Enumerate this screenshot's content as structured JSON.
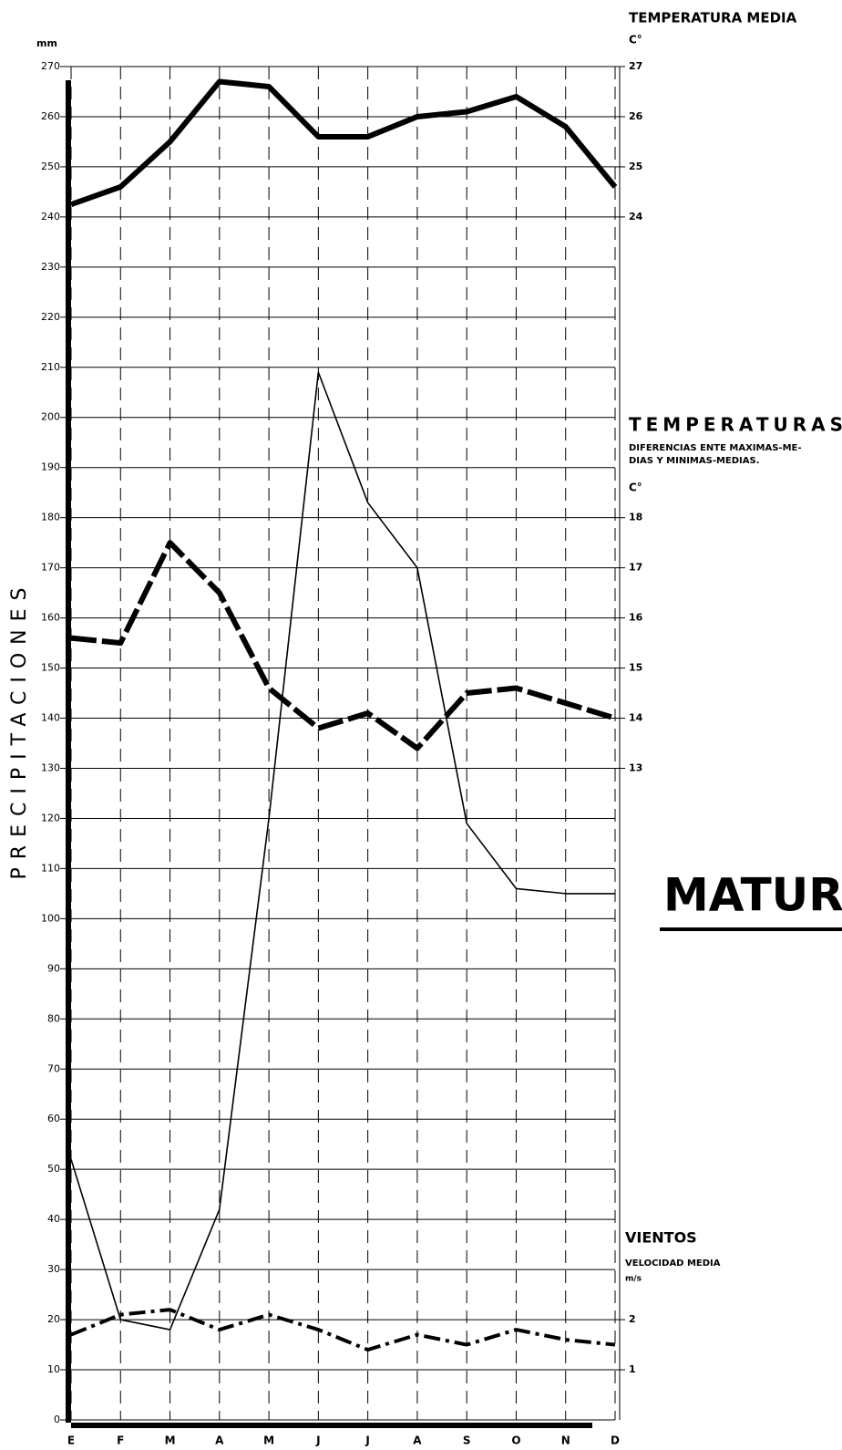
{
  "chart_data": {
    "type": "line",
    "title": "MATUR",
    "ylabel": "PRECIPITACIONES",
    "yunit": "mm",
    "y2_title": "TEMPERATURA MEDIA",
    "y2_unit": "C°",
    "y3_title": "TEMPERATURAS",
    "y3_subtitle": [
      "DIFERENCIAS ENTE MAXIMAS-ME-",
      "DIAS Y MINIMAS-MEDIAS."
    ],
    "y3_unit": "C°",
    "y4_title": "VIENTOS",
    "y4_subtitle": "VELOCIDAD MEDIA",
    "y4_unit": "m/s",
    "categories": [
      "E",
      "F",
      "M",
      "A",
      "M",
      "J",
      "J",
      "A",
      "S",
      "O",
      "N",
      "D"
    ],
    "series": [
      {
        "color": "#000000",
        "values": [
          52,
          20,
          18,
          42,
          120,
          209,
          183,
          170,
          119,
          106,
          105,
          105
        ]
      },
      {
        "color": "#000000",
        "axis": "y2",
        "values": [
          24.25,
          24.6,
          25.5,
          26.7,
          26.6,
          25.6,
          25.6,
          26.0,
          26.1,
          26.4,
          25.8,
          24.6
        ]
      },
      {
        "color": "#000000",
        "axis": "y3",
        "values": [
          15.6,
          15.5,
          17.5,
          16.5,
          14.6,
          13.8,
          14.1,
          13.4,
          14.5,
          14.6,
          14.3,
          14.0
        ]
      },
      {
        "color": "#000000",
        "axis": "y4",
        "values": [
          1.7,
          2.1,
          2.2,
          1.8,
          2.1,
          1.8,
          1.4,
          1.7,
          1.5,
          1.8,
          1.6,
          1.5
        ]
      }
    ],
    "ylim": [
      0,
      270
    ],
    "yticks": [
      0,
      10,
      20,
      30,
      40,
      50,
      60,
      70,
      80,
      90,
      100,
      110,
      120,
      130,
      140,
      150,
      160,
      170,
      180,
      190,
      200,
      210,
      220,
      230,
      240,
      250,
      260,
      270
    ],
    "y2lim": [
      0,
      27
    ],
    "y2ticks": [
      24,
      25,
      26,
      27
    ],
    "y3lim": [
      0,
      27
    ],
    "y3ticks": [
      13,
      14,
      15,
      16,
      17,
      18
    ],
    "y4lim": [
      0,
      27
    ],
    "y4ticks": [
      1,
      2
    ],
    "grid": true
  }
}
